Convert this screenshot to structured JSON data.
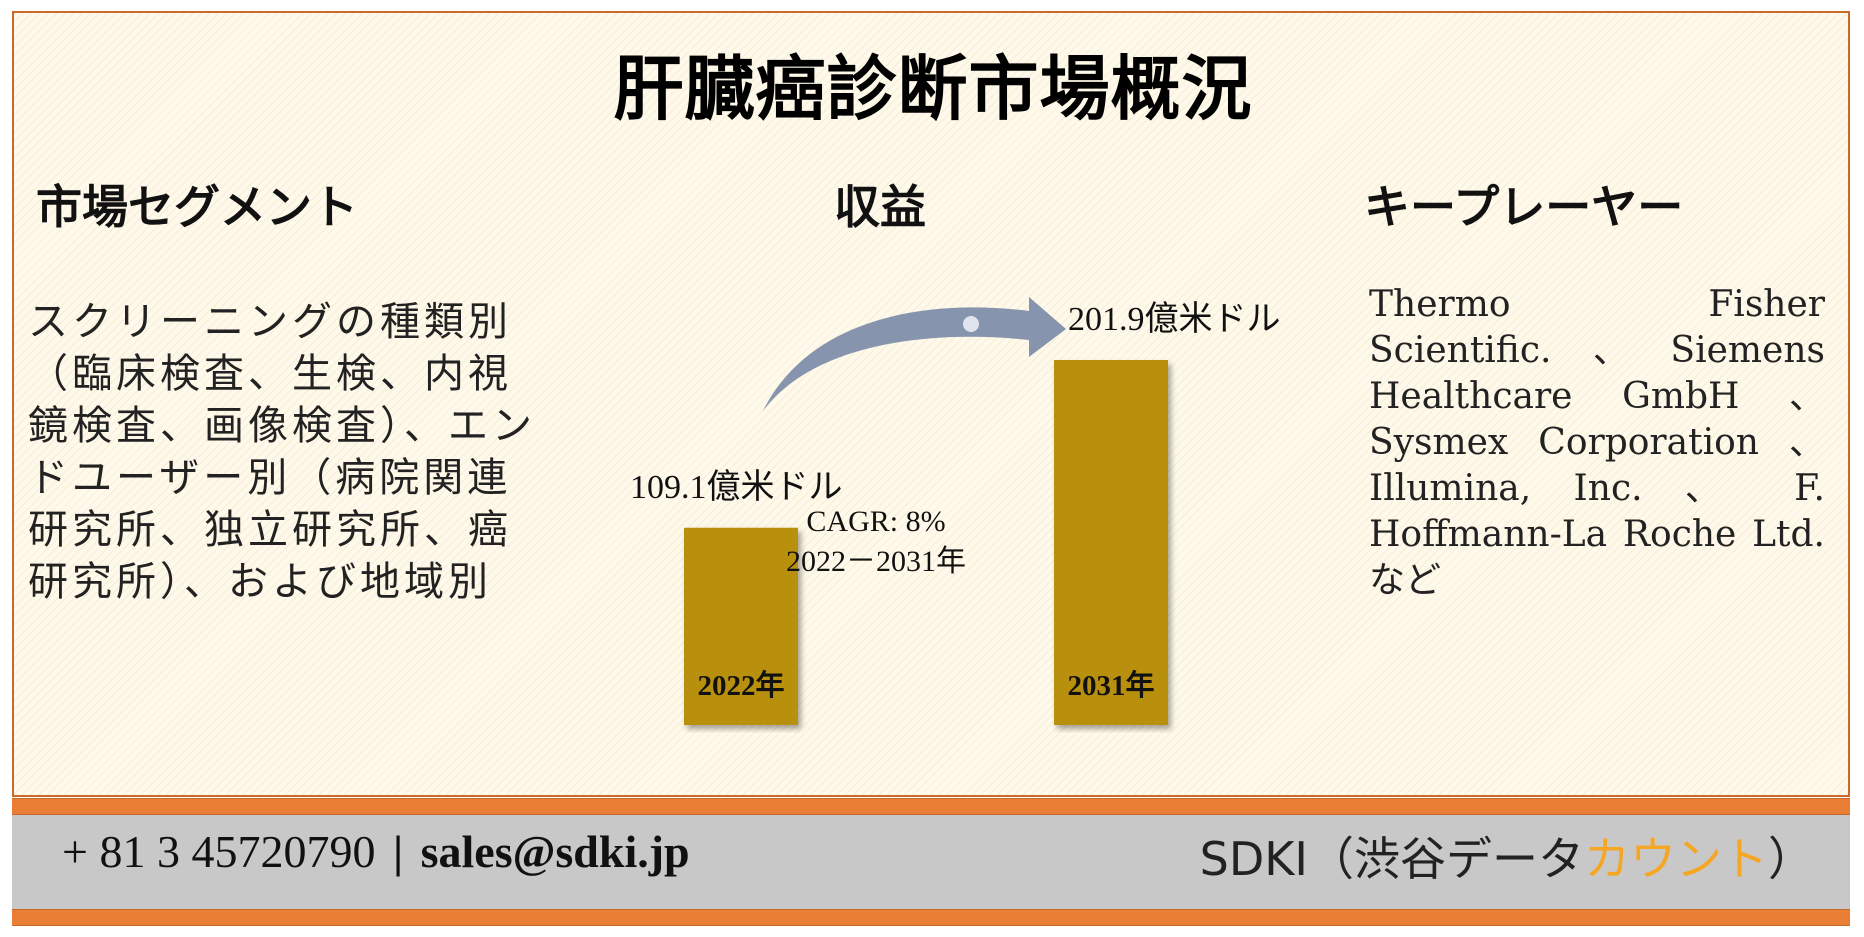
{
  "title": "肝臓癌診断市場概況",
  "segments": {
    "heading": "市場セグメント",
    "text": "スクリーニングの種類別（臨床検査、生検、内視鏡検査、画像検査）、エンドユーザー別（病院関連研究所、独立研究所、癌研究所）、および地域別"
  },
  "revenue": {
    "heading": "収益",
    "cagr_label": "CAGR: 8%",
    "cagr_period": "2022－2031年"
  },
  "key_players": {
    "heading": "キープレーヤー",
    "text": "Thermo Fisher Scientific.、Siemens Healthcare GmbH 、 Sysmex Corporation 、 Illumina, Inc. 、 F. Hoffmann-La Roche Ltd.など"
  },
  "chart_data": {
    "type": "bar",
    "categories": [
      "2022年",
      "2031年"
    ],
    "values": [
      109.1,
      201.9
    ],
    "value_labels": [
      "109.1億米ドル",
      "201.9億米ドル"
    ],
    "unit": "億米ドル",
    "bar_color": "#b8900a",
    "arrow_color": "#8794ad"
  },
  "footer": {
    "phone": "+ 81 3 45720790",
    "separator": "|",
    "email": "sales@sdki.jp",
    "brand_main": "SDKI（渋谷データ",
    "brand_accent": "カウント",
    "brand_end": "）",
    "accent_color": "#f5a623"
  }
}
